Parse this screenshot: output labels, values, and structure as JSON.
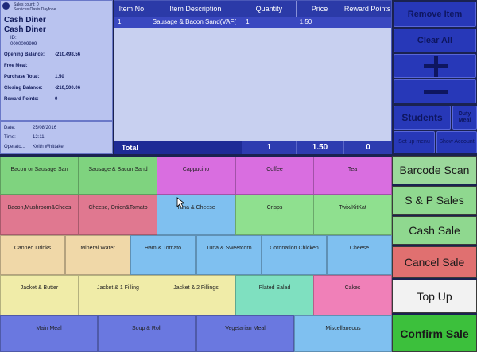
{
  "customer": {
    "sales_count": "Sales count: 0",
    "site": "Services Oasis Dayfone",
    "name_line1": "Cash Diner",
    "name_line2": "Cash Diner",
    "id_label": "ID:",
    "id_value": "0000009999",
    "rows": [
      {
        "label": "Opening Balance:",
        "value": "-210,498.56"
      },
      {
        "label": "Free Meal:",
        "value": ""
      },
      {
        "label": "Purchase Total:",
        "value": "1.50"
      },
      {
        "label": "Closing Balance:",
        "value": "-210,500.06"
      },
      {
        "label": "Reward Points:",
        "value": "0"
      }
    ]
  },
  "info": {
    "date_label": "Date:",
    "date_value": "25/08/2016",
    "time_label": "Time:",
    "time_value": "12:11",
    "operator_label": "Operato...",
    "operator_value": "Keith Whittaker"
  },
  "order": {
    "columns": [
      "Item No",
      "Item Description",
      "Quantity",
      "Price",
      "Reward Points"
    ],
    "rows": [
      {
        "item_no": "1",
        "description": "Sausage & Bacon Sand(VAF(",
        "quantity": "1",
        "price": "1.50",
        "points": ""
      }
    ],
    "total_label": "Total",
    "total_quantity": "1",
    "total_price": "1.50",
    "total_points": "0"
  },
  "functions": {
    "remove_item": "Remove Item",
    "clear_all": "Clear All",
    "students": "Students",
    "duty_meal": "Duty Meal",
    "setup_menu": "Set up menu",
    "show_account": "Show Account"
  },
  "products": [
    {
      "label": "Bacon or Sausage San",
      "color": "#7fd37f"
    },
    {
      "label": "Sausage & Bacon Sand",
      "color": "#7fd37f"
    },
    {
      "label": "Cappucino",
      "color": "#d96ee0"
    },
    {
      "label": "Coffee",
      "color": "#d96ee0"
    },
    {
      "label": "Tea",
      "color": "#d96ee0"
    },
    {
      "label": "Bacon,Mushroom&Chees",
      "color": "#e07890"
    },
    {
      "label": "Cheese, Onion&Tomato",
      "color": "#e07890"
    },
    {
      "label": "Tuna & Cheese",
      "color": "#7fc0f0"
    },
    {
      "label": "Crisps",
      "color": "#8fe08f"
    },
    {
      "label": "Twix/KitKat",
      "color": "#8fe08f"
    },
    {
      "label": "Canned Drinks",
      "color": "#f0d8a8"
    },
    {
      "label": "Mineral Water",
      "color": "#f0d8a8"
    },
    {
      "label": "Ham & Tomato",
      "color": "#7fc0f0"
    },
    {
      "label": "Tuna & Sweetcorn",
      "color": "#7fc0f0"
    },
    {
      "label": "Coronation Chicken",
      "color": "#7fc0f0"
    },
    {
      "label": "Cheese",
      "color": "#7fc0f0"
    },
    {
      "label": "Jacket & Butter",
      "color": "#f0eca8"
    },
    {
      "label": "Jacket & 1 Filling",
      "color": "#f0eca8"
    },
    {
      "label": "Jacket & 2 Fillings",
      "color": "#f0eca8"
    },
    {
      "label": "Plated Salad",
      "color": "#7fe0c0"
    },
    {
      "label": "Cakes",
      "color": "#f080b8"
    },
    {
      "label": "Main Meal",
      "color": "#6a78e0"
    },
    {
      "label": "Soup & Roll",
      "color": "#6a78e0"
    },
    {
      "label": "Vegetarian Meal",
      "color": "#6a78e0"
    },
    {
      "label": "Miscellaneous",
      "color": "#7fc0f0"
    }
  ],
  "actions": {
    "barcode_scan": "Barcode Scan",
    "sp_sales": "S & P Sales",
    "cash_sale": "Cash Sale",
    "cancel_sale": "Cancel Sale",
    "top_up": "Top Up",
    "confirm_sale": "Confirm Sale"
  }
}
